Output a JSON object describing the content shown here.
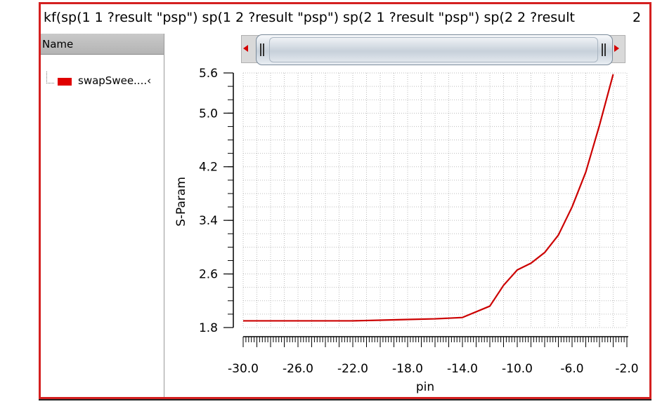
{
  "window": {
    "expression_title": "kf(sp(1 1 ?result \"psp\") sp(1 2 ?result \"psp\") sp(2 1 ?result \"psp\") sp(2 2 ?result",
    "title_suffix": "2"
  },
  "legend_panel": {
    "header": "Name",
    "items": [
      {
        "label": "swapSwee....‹",
        "color": "#e00000"
      }
    ]
  },
  "chart_data": {
    "type": "line",
    "xlabel": "pin",
    "ylabel": "S-Param",
    "xlim": [
      -30.0,
      -2.0
    ],
    "ylim": [
      1.8,
      5.6
    ],
    "x_ticks": [
      -30.0,
      -26.0,
      -22.0,
      -18.0,
      -14.0,
      -10.0,
      -6.0,
      -2.0
    ],
    "x_tick_labels": [
      "-30.0",
      "-26.0",
      "-22.0",
      "-18.0",
      "-14.0",
      "-10.0",
      "-6.0",
      "-2.0"
    ],
    "y_ticks": [
      1.8,
      2.6,
      3.4,
      4.2,
      5.0,
      5.6
    ],
    "y_tick_labels": [
      "1.8",
      "2.6",
      "3.4",
      "4.2",
      "5.0",
      "5.6"
    ],
    "grid": true,
    "series": [
      {
        "color": "#cc0000",
        "x": [
          -30,
          -28,
          -26,
          -24,
          -22,
          -20,
          -18,
          -16,
          -14,
          -12,
          -11,
          -10,
          -9,
          -8,
          -7,
          -6,
          -5,
          -4,
          -3
        ],
        "y": [
          1.9,
          1.9,
          1.9,
          1.9,
          1.9,
          1.91,
          1.92,
          1.93,
          1.95,
          2.12,
          2.43,
          2.66,
          2.76,
          2.92,
          3.18,
          3.6,
          4.12,
          4.82,
          5.58
        ]
      }
    ]
  }
}
